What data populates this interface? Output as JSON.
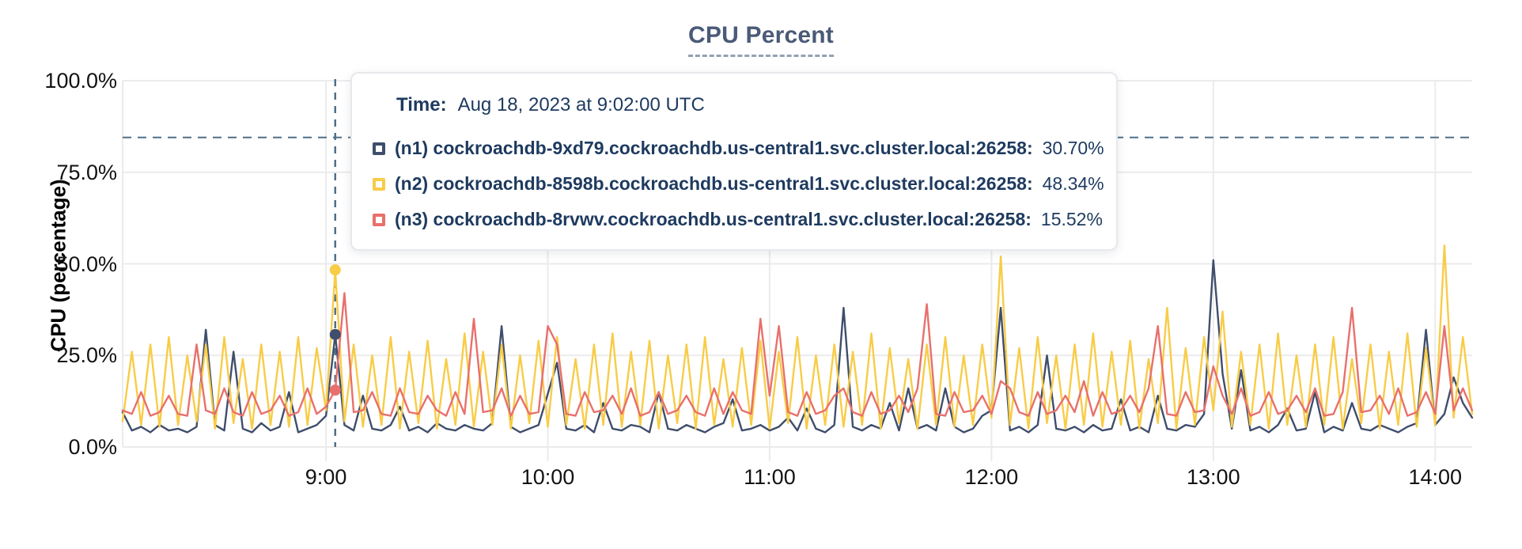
{
  "title": "CPU Percent",
  "y_axis_label": "CPU (percentage)",
  "tooltip": {
    "time_label": "Time:",
    "time_value": "Aug 18, 2023 at 9:02:00 UTC",
    "rows": [
      {
        "label": "(n1) cockroachdb-9xd79.cockroachdb.us-central1.svc.cluster.local:26258:",
        "value": "30.70%",
        "color": "#3F4E6C"
      },
      {
        "label": "(n2) cockroachdb-8598b.cockroachdb.us-central1.svc.cluster.local:26258:",
        "value": "48.34%",
        "color": "#F8CC47"
      },
      {
        "label": "(n3) cockroachdb-8rvwv.cockroachdb.us-central1.svc.cluster.local:26258:",
        "value": "15.52%",
        "color": "#E8706C"
      }
    ]
  },
  "chart_data": {
    "type": "line",
    "title": "CPU Percent",
    "xlabel": "",
    "ylabel": "CPU (percentage)",
    "ylim": [
      0,
      100
    ],
    "grid": true,
    "y_ticks": [
      {
        "value": 100,
        "label": "100.0%"
      },
      {
        "value": 75,
        "label": "75.0%"
      },
      {
        "value": 50,
        "label": "50.0%"
      },
      {
        "value": 25,
        "label": "25.0%"
      },
      {
        "value": 0,
        "label": "0.0%"
      }
    ],
    "x_ticks": [
      {
        "t": 540,
        "label": "9:00"
      },
      {
        "t": 600,
        "label": "10:00"
      },
      {
        "t": 660,
        "label": "11:00"
      },
      {
        "t": 720,
        "label": "12:00"
      },
      {
        "t": 780,
        "label": "13:00"
      },
      {
        "t": 840,
        "label": "14:00"
      }
    ],
    "x_start_min": 485,
    "x_end_min": 850,
    "x_step_min": 2.5,
    "hover": {
      "index": 23,
      "t": 542.5,
      "time": "9:02:00 UTC"
    },
    "threshold_line": {
      "value": 84.5,
      "color": "#4F6F88",
      "style": "dashed"
    },
    "crosshair_color": "#4F6F88",
    "grid_color": "#EBEBEB",
    "series": [
      {
        "name": "(n1) cockroachdb-9xd79.cockroachdb.us-central1.svc.cluster.local:26258",
        "color": "#3F4E6C",
        "hover_value": 30.7,
        "values": [
          9.5,
          4.5,
          5.5,
          4,
          6,
          4.5,
          5,
          4,
          5.5,
          32,
          6,
          4.5,
          26,
          5,
          4,
          6.5,
          4.5,
          5.5,
          15,
          4,
          5,
          6,
          8.5,
          30.7,
          6,
          4.5,
          14,
          5,
          4.5,
          6,
          11,
          4.5,
          5.5,
          4,
          6.5,
          5,
          4.5,
          6,
          5,
          4.5,
          6.5,
          33,
          5.5,
          4,
          5,
          6,
          14.5,
          23,
          5,
          4.5,
          6,
          4,
          12,
          5,
          4.5,
          6,
          5.5,
          4,
          15,
          5,
          4.5,
          6,
          5,
          4,
          5.5,
          6.5,
          13,
          4.5,
          5,
          6,
          4.5,
          5.5,
          8,
          4.5,
          10.5,
          5,
          4,
          6,
          38,
          5.5,
          4.5,
          6,
          5,
          12,
          4.5,
          16,
          5,
          6,
          4.5,
          16,
          5.5,
          4,
          5,
          8.5,
          10,
          38,
          4.5,
          5.5,
          4,
          6,
          25,
          5,
          4.5,
          5.5,
          4,
          6,
          4.5,
          5,
          13,
          4.5,
          5.5,
          4,
          14,
          5,
          4.5,
          6,
          5.5,
          9,
          51,
          20,
          5,
          21,
          4.5,
          5.5,
          4,
          6,
          10.5,
          4.5,
          5,
          15,
          4,
          5.5,
          4.5,
          12,
          5,
          4.5,
          6,
          5,
          4,
          5.5,
          6.5,
          32,
          6,
          9,
          19,
          12,
          8
        ]
      },
      {
        "name": "(n2) cockroachdb-8598b.cockroachdb.us-central1.svc.cluster.local:26258",
        "color": "#F8CC47",
        "hover_value": 48.34,
        "values": [
          7,
          26,
          6,
          28,
          5.5,
          30,
          6,
          25,
          7,
          28,
          5,
          30,
          6.5,
          24,
          5,
          28,
          6,
          26,
          5.5,
          30,
          6,
          27,
          10,
          48.34,
          7,
          28,
          5.5,
          25,
          6,
          30,
          5,
          26,
          6.5,
          29,
          5,
          24,
          6,
          31,
          5.5,
          26,
          6,
          28,
          5,
          25,
          6.5,
          29,
          5.5,
          30,
          6,
          24,
          5,
          28,
          6,
          31,
          5.5,
          26,
          6,
          29,
          5,
          25,
          6.5,
          28,
          5,
          30,
          6,
          24,
          5.5,
          27,
          6,
          29,
          5,
          26,
          6.5,
          30,
          5,
          25,
          6,
          28,
          5.5,
          26,
          6,
          31,
          5,
          27,
          6.5,
          24,
          5,
          28,
          6,
          30,
          5.5,
          25,
          6,
          28,
          8,
          52,
          6,
          27,
          5,
          30,
          6.5,
          25,
          5,
          28,
          6,
          31,
          5.5,
          26,
          6,
          29,
          5,
          24,
          6.5,
          38,
          5,
          27,
          6,
          30,
          10,
          37,
          5.5,
          26,
          6,
          28,
          5,
          31,
          6,
          25,
          5.5,
          28,
          6,
          30,
          5,
          24,
          6.5,
          28,
          5,
          26,
          6,
          31,
          5.5,
          27,
          6,
          55,
          8,
          30,
          9
        ]
      },
      {
        "name": "(n3) cockroachdb-8rvwv.cockroachdb.us-central1.svc.cluster.local:26258",
        "color": "#E8706C",
        "hover_value": 15.52,
        "values": [
          10,
          9,
          15,
          8.5,
          9.5,
          14,
          9,
          8.5,
          28,
          10,
          9,
          16,
          9.5,
          8.5,
          15,
          9,
          10,
          14,
          8.5,
          9.5,
          16,
          9,
          11,
          15.52,
          42,
          9.5,
          10,
          15,
          9,
          8.5,
          16,
          9.5,
          9,
          14,
          10,
          8.5,
          15,
          9,
          35,
          9.5,
          10,
          16,
          8.5,
          14,
          9,
          9.5,
          33,
          28,
          9,
          8.5,
          15,
          9.5,
          10,
          14,
          9,
          16,
          8.5,
          9.5,
          15,
          9,
          10,
          14,
          9.5,
          8.5,
          16,
          9,
          15,
          10,
          9,
          35,
          14,
          33,
          9.5,
          8.5,
          15,
          9,
          10,
          14,
          16,
          9.5,
          8.5,
          15,
          9,
          10,
          14,
          9.5,
          16,
          39,
          9,
          8.5,
          15,
          9.5,
          10,
          14,
          9,
          18,
          16,
          9.5,
          8.5,
          15,
          9,
          10,
          14,
          9.5,
          18,
          8.5,
          15,
          9,
          10,
          14,
          9.5,
          16,
          33,
          9,
          8.5,
          15,
          9.5,
          10,
          22,
          14,
          9,
          16,
          8.5,
          9.5,
          15,
          9,
          10,
          14,
          9.5,
          16,
          8.5,
          9,
          15,
          38,
          9.5,
          10,
          14,
          9,
          16,
          8.5,
          9.5,
          15,
          9,
          33,
          10,
          16,
          10
        ]
      }
    ]
  }
}
